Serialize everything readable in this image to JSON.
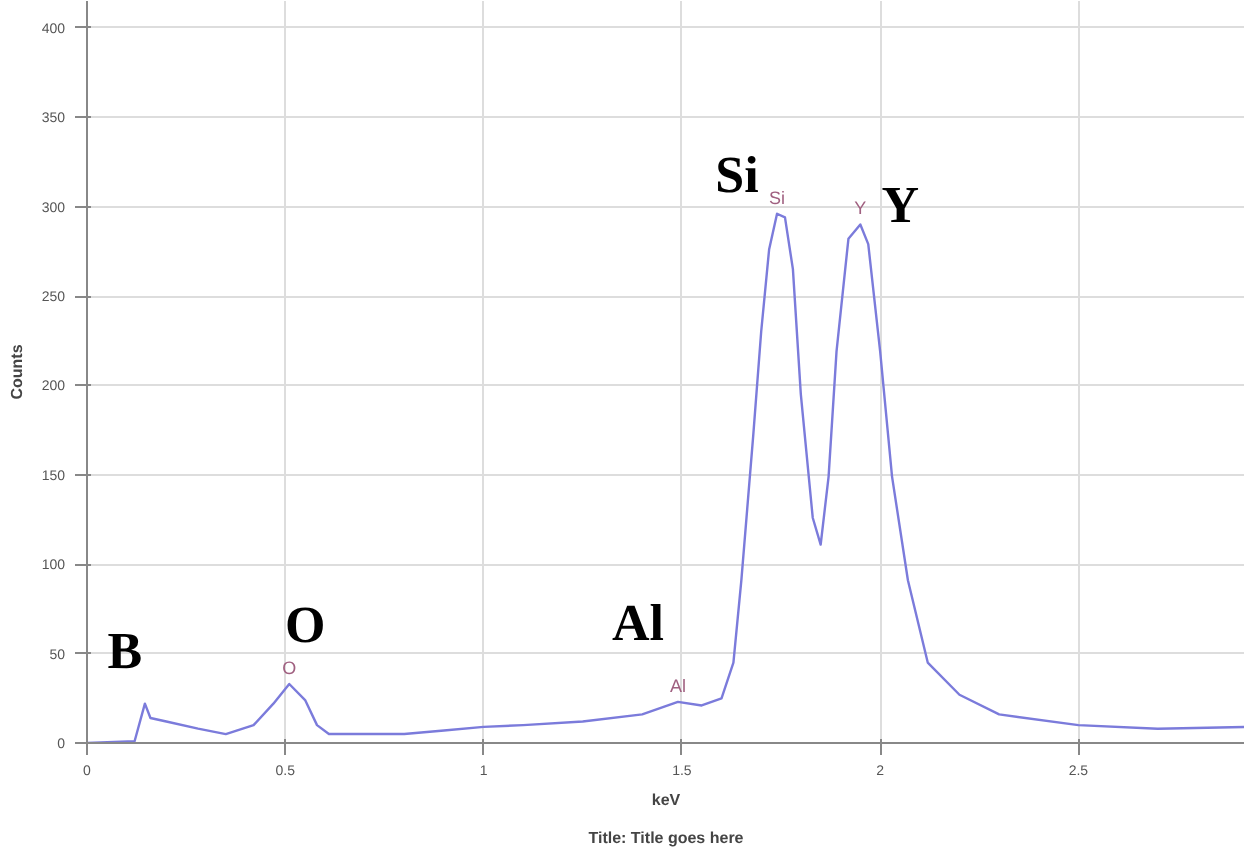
{
  "chart_data": {
    "type": "line",
    "xlabel": "keV",
    "ylabel": "Counts",
    "x": [
      0,
      0.12,
      0.146,
      0.16,
      0.2,
      0.28,
      0.35,
      0.42,
      0.47,
      0.51,
      0.55,
      0.58,
      0.61,
      0.7,
      0.8,
      0.9,
      1.0,
      1.1,
      1.25,
      1.4,
      1.49,
      1.55,
      1.6,
      1.63,
      1.65,
      1.68,
      1.7,
      1.72,
      1.74,
      1.76,
      1.78,
      1.8,
      1.83,
      1.85,
      1.87,
      1.89,
      1.92,
      1.95,
      1.97,
      2.0,
      2.03,
      2.07,
      2.12,
      2.2,
      2.3,
      2.5,
      2.7,
      2.92
    ],
    "series": [
      {
        "color": "#7b7bdb",
        "values": [
          0,
          1,
          22,
          14,
          12,
          8,
          5,
          10,
          22,
          33,
          24,
          10,
          5,
          5,
          5,
          7,
          9,
          10,
          12,
          16,
          23,
          21,
          25,
          45,
          91,
          172,
          230,
          276,
          296,
          294,
          265,
          195,
          126,
          111,
          149,
          219,
          282,
          290,
          279,
          219,
          149,
          91,
          45,
          27,
          16,
          10,
          8,
          9
        ]
      }
    ],
    "xlim": [
      0,
      2.92
    ],
    "ylim": [
      0,
      415
    ],
    "xticks": [
      0,
      0.5,
      1,
      1.5,
      2,
      2.5
    ],
    "yticks": [
      0,
      50,
      100,
      150,
      200,
      250,
      300,
      350,
      400
    ],
    "grid": true,
    "marker": "none",
    "line_style": "solid",
    "annotations": [
      {
        "text": "B",
        "x": 0.146,
        "y": 22
      },
      {
        "text": "O",
        "x": 0.51,
        "y": 33
      },
      {
        "text": "Al",
        "x": 1.49,
        "y": 23
      },
      {
        "text": "Si",
        "x": 1.74,
        "y": 296
      },
      {
        "text": "Y",
        "x": 1.95,
        "y": 290
      },
      {
        "text": "O",
        "x": 0.51,
        "y": 33
      },
      {
        "text": "Al",
        "x": 1.49,
        "y": 23
      },
      {
        "text": "Si",
        "x": 1.74,
        "y": 296
      },
      {
        "text": "Y",
        "x": 1.95,
        "y": 290
      },
      "Title: Title goes here"
    ]
  }
}
